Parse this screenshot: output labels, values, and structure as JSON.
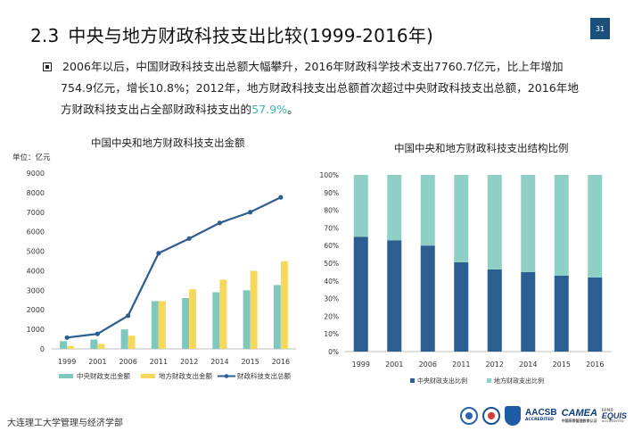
{
  "header": {
    "section_number": "2.3",
    "title": "中央与地方财政科技支出比较(1999-2016年)",
    "page_number": "31"
  },
  "bullet": {
    "line1": "2006年以后，中国财政科技支出总额大幅攀升，2016年财政科学技术支出7760.7亿元，比上年增加",
    "line2": "754.9亿元，增长10.8%；2012年，地方财政科技支出总额首次超过中央财政科技支出总额，2016年地",
    "line3_prefix": "方财政科技支出占全部财政科技支出的",
    "line3_highlight": "57.9%",
    "line3_suffix": "。"
  },
  "footer": {
    "institution": "大连理工大学管理与经济学部"
  },
  "logos": {
    "aacsb_main": "AACSB",
    "aacsb_sub": "ACCREDITED",
    "camea_main": "CAMEA",
    "camea_sub": "中国高等管理教育认证",
    "equis_top": "EFMD",
    "equis_main": "EQUIS",
    "equis_sub": "ACCREDITED"
  },
  "colors": {
    "central_bar": "#7fc8bf",
    "local_bar": "#f6d95c",
    "total_line": "#2b5f91",
    "stack_central": "#2b5f91",
    "stack_local": "#8fd0c6",
    "highlight": "#3fb7a8",
    "axis": "#bfbfbf",
    "text": "#222222"
  },
  "chart_data": [
    {
      "type": "bar",
      "title": "中国中央和地方财政科技支出金额",
      "unit_label": "单位：亿元",
      "categories": [
        "1999",
        "2001",
        "2006",
        "2011",
        "2012",
        "2014",
        "2015",
        "2016"
      ],
      "ylim": [
        0,
        9000
      ],
      "yticks": [
        "0",
        "1000",
        "2000",
        "3000",
        "4000",
        "5000",
        "6000",
        "7000",
        "8000",
        "9000"
      ],
      "grid": false,
      "legend_position": "bottom",
      "series": [
        {
          "name": "中央财政支出金额",
          "kind": "bar",
          "values": [
            400,
            480,
            1000,
            2450,
            2600,
            2900,
            3000,
            3270
          ]
        },
        {
          "name": "地方财政支出金额",
          "kind": "bar",
          "values": [
            150,
            250,
            680,
            2450,
            3050,
            3550,
            4000,
            4490
          ]
        },
        {
          "name": "财政科技支出总额",
          "kind": "line",
          "values": [
            580,
            770,
            1700,
            4900,
            5650,
            6450,
            7000,
            7760
          ]
        }
      ]
    },
    {
      "type": "bar",
      "stacked": true,
      "title": "中国中央和地方财政科技支出结构比例",
      "categories": [
        "1999",
        "2001",
        "2006",
        "2011",
        "2012",
        "2014",
        "2015",
        "2016"
      ],
      "ylim": [
        0,
        100
      ],
      "yticks": [
        "0%",
        "10%",
        "20%",
        "30%",
        "40%",
        "50%",
        "60%",
        "70%",
        "80%",
        "90%",
        "100%"
      ],
      "grid": false,
      "legend_position": "bottom",
      "series": [
        {
          "name": "中央财政支出比例",
          "values": [
            65,
            63,
            60,
            50.5,
            46.5,
            45,
            43,
            42
          ]
        },
        {
          "name": "地方财政支出比例",
          "values": [
            35,
            37,
            40,
            49.5,
            53.5,
            55,
            57,
            58
          ]
        }
      ]
    }
  ]
}
